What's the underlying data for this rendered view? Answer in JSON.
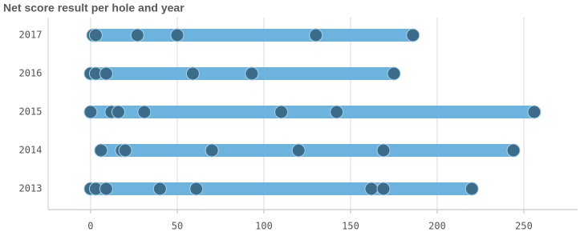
{
  "chart_data": {
    "type": "dotrange",
    "title": "Net score result per hole and year",
    "categories": [
      "2017",
      "2016",
      "2015",
      "2014",
      "2013"
    ],
    "values": [
      [
        1.4,
        3,
        27,
        50,
        130,
        186
      ],
      [
        0,
        3,
        9,
        59,
        93,
        175
      ],
      [
        0,
        12,
        16,
        31,
        110,
        142,
        256
      ],
      [
        6,
        18,
        20,
        70,
        120,
        169,
        244
      ],
      [
        0,
        3,
        9,
        40,
        61,
        162,
        169,
        220
      ]
    ],
    "bar_color": "#6cb4de",
    "dot_color": "#3b6c8c",
    "xlim": [
      -24.5,
      281
    ],
    "xticks": [
      0,
      50,
      100,
      150,
      200,
      250
    ],
    "grid": true
  }
}
